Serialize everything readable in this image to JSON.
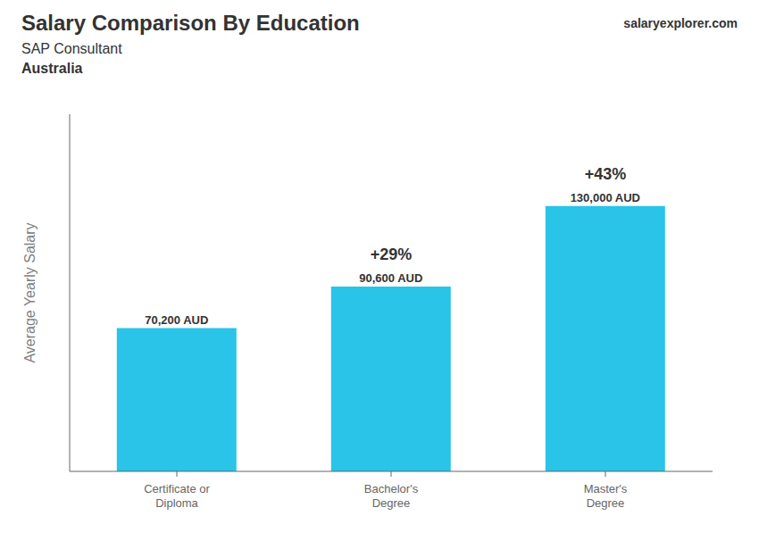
{
  "chart_data": {
    "type": "bar",
    "title": "Salary Comparison By Education",
    "subtitle": [
      "SAP Consultant",
      "Australia"
    ],
    "source": "salaryexplorer.com",
    "y_label": "Average Yearly Salary",
    "categories": [
      "Certificate or\nDiploma",
      "Bachelor's\nDegree",
      "Master's\nDegree"
    ],
    "values": [
      70200,
      90600,
      130000
    ],
    "value_labels": [
      "70,200 AUD",
      "90,600 AUD",
      "130,000 AUD"
    ],
    "data_labels": true,
    "annotations": [
      "+29%",
      "+43%"
    ],
    "color": "#29c4e8",
    "ylim": [
      0,
      175000
    ],
    "tick_labels": "x",
    "grid": false
  }
}
